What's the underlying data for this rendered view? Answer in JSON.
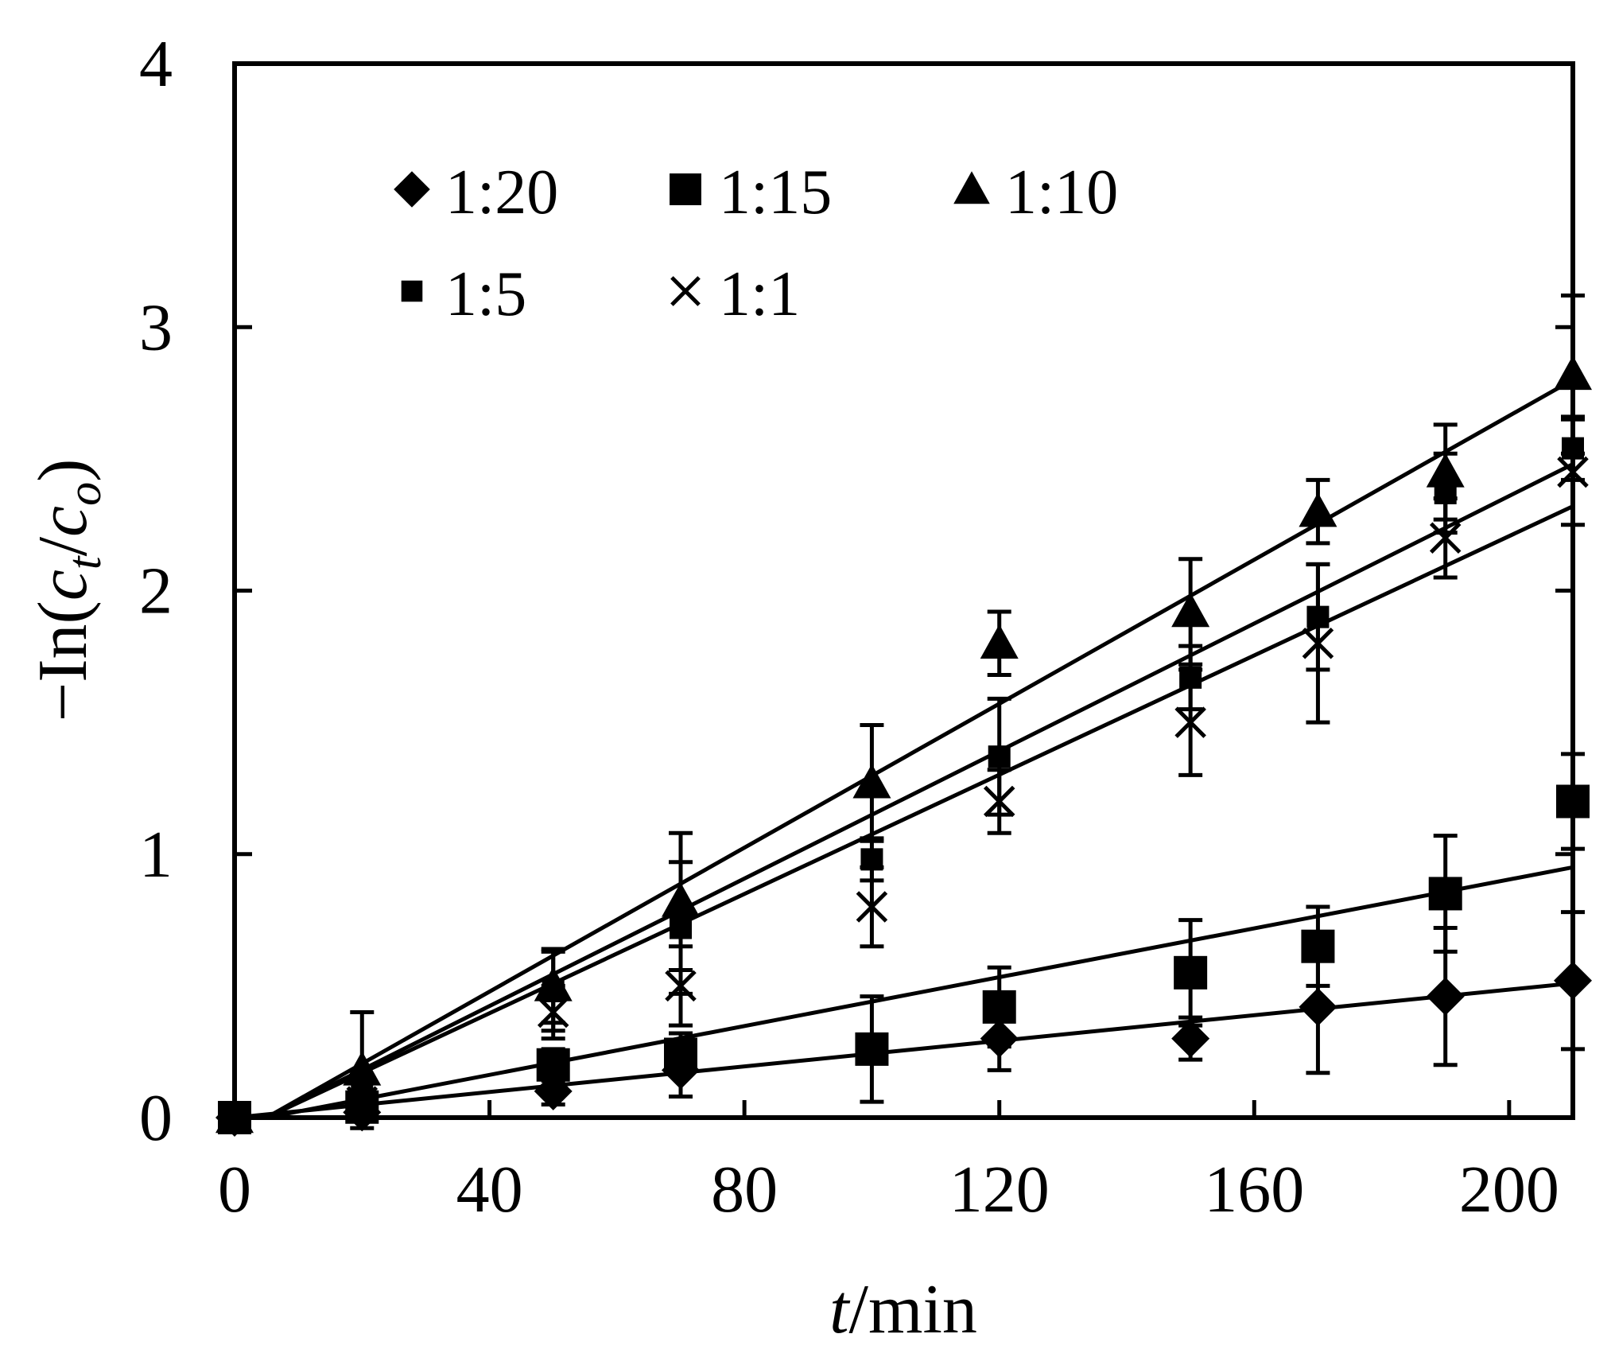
{
  "chart_data": {
    "type": "scatter",
    "title": "",
    "xlabel": {
      "italic": "t",
      "rest": "/min"
    },
    "ylabel": {
      "prefix": "−In(",
      "c1": "c",
      "sub1": "t",
      "slash": "/",
      "c2": "c",
      "sub2": "o",
      "suffix": ")"
    },
    "xlim": [
      0,
      210
    ],
    "ylim": [
      0,
      4
    ],
    "xticks": [
      0,
      40,
      80,
      120,
      160,
      200
    ],
    "yticks": [
      0,
      1,
      2,
      3,
      4
    ],
    "xtick_labels": [
      "0",
      "40",
      "80",
      "120",
      "160",
      "200"
    ],
    "ytick_labels": [
      "0",
      "1",
      "2",
      "3",
      "4"
    ],
    "grid": false,
    "legend_position": "top-left",
    "series": [
      {
        "name": "1:20",
        "marker": "diamond",
        "x": [
          0,
          20,
          50,
          70,
          120,
          150,
          170,
          190,
          210
        ],
        "y": [
          0,
          0.02,
          0.1,
          0.18,
          0.3,
          0.3,
          0.42,
          0.46,
          0.52
        ],
        "err": [
          0,
          0.02,
          0.05,
          0.1,
          0.12,
          0.08,
          0.25,
          0.26,
          0.26
        ],
        "fit": {
          "x0": 0,
          "y0": 0.0,
          "x1": 210,
          "y1": 0.51
        }
      },
      {
        "name": "1:15",
        "marker": "square-large",
        "x": [
          0,
          20,
          50,
          70,
          100,
          120,
          150,
          170,
          190,
          210
        ],
        "y": [
          0,
          0.04,
          0.2,
          0.24,
          0.26,
          0.42,
          0.55,
          0.65,
          0.85,
          1.2
        ],
        "err": [
          0,
          0.03,
          0.06,
          0.08,
          0.2,
          0.15,
          0.2,
          0.15,
          0.22,
          0.18
        ],
        "fit": {
          "x0": 5,
          "y0": 0.0,
          "x1": 210,
          "y1": 0.95
        }
      },
      {
        "name": "1:10",
        "marker": "triangle",
        "x": [
          0,
          20,
          50,
          70,
          100,
          120,
          150,
          170,
          190,
          210
        ],
        "y": [
          0,
          0.18,
          0.5,
          0.82,
          1.27,
          1.8,
          1.92,
          2.3,
          2.45,
          2.82
        ],
        "err": [
          0,
          0.22,
          0.14,
          0.26,
          0.22,
          0.12,
          0.2,
          0.12,
          0.18,
          0.3
        ],
        "fit": {
          "x0": 5,
          "y0": 0.0,
          "x1": 210,
          "y1": 2.8
        }
      },
      {
        "name": "1:5",
        "marker": "square-small",
        "x": [
          0,
          20,
          50,
          70,
          100,
          120,
          150,
          170,
          190,
          210
        ],
        "y": [
          0,
          0.08,
          0.48,
          0.72,
          0.98,
          1.37,
          1.67,
          1.9,
          2.37,
          2.54
        ],
        "err": [
          0,
          0.05,
          0.15,
          0.25,
          0.08,
          0.22,
          0.12,
          0.2,
          0.15,
          0.12
        ],
        "fit": {
          "x0": 5,
          "y0": 0.0,
          "x1": 210,
          "y1": 2.48
        }
      },
      {
        "name": "1:1",
        "marker": "x",
        "x": [
          0,
          20,
          50,
          70,
          100,
          120,
          150,
          170,
          190,
          210
        ],
        "y": [
          0,
          0.06,
          0.4,
          0.5,
          0.8,
          1.2,
          1.5,
          1.8,
          2.2,
          2.45
        ],
        "err": [
          0,
          0.04,
          0.1,
          0.15,
          0.15,
          0.12,
          0.2,
          0.3,
          0.15,
          0.2
        ],
        "fit": {
          "x0": 5,
          "y0": 0.0,
          "x1": 210,
          "y1": 2.32
        }
      }
    ]
  }
}
